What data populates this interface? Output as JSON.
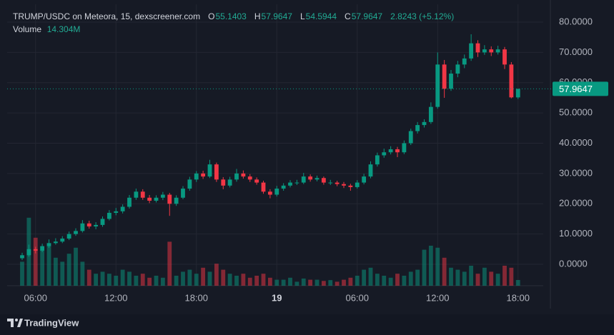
{
  "chart_data": {
    "type": "candlestick",
    "title": "TRUMP/USDC on Meteora, 15, dexscreener.com",
    "open_label": "O",
    "high_label": "H",
    "low_label": "L",
    "close_label": "C",
    "change": "2.8243 (+5.12%)",
    "volume_title": "Volume",
    "volume_label": "14.304M",
    "brand": "TradingView",
    "up_color": "#089981",
    "down_color": "#f23645",
    "ylim": [
      -7.08,
      85.9
    ],
    "yticks": [
      {
        "value": 0,
        "label": "0.0000"
      },
      {
        "value": 10,
        "label": "10.0000"
      },
      {
        "value": 20,
        "label": "20.0000"
      },
      {
        "value": 30,
        "label": "30.0000"
      },
      {
        "value": 40,
        "label": "40.0000"
      },
      {
        "value": 50,
        "label": "50.0000"
      },
      {
        "value": 60,
        "label": "60.0000"
      },
      {
        "value": 70,
        "label": "70.0000"
      },
      {
        "value": 80,
        "label": "80.0000"
      }
    ],
    "xlim": [
      -2.24,
      77.76
    ],
    "xticks": [
      {
        "value": 2,
        "label": "06:00"
      },
      {
        "value": 14,
        "label": "12:00"
      },
      {
        "value": 26,
        "label": "18:00"
      },
      {
        "value": 38,
        "label": "19"
      },
      {
        "value": 50,
        "label": "06:00"
      },
      {
        "value": 62,
        "label": "12:00"
      },
      {
        "value": 74,
        "label": "18:00"
      }
    ],
    "grid": true,
    "candles": [
      [
        2,
        3.8,
        1.4,
        3
      ],
      [
        3,
        6.5,
        2.5,
        5
      ],
      [
        5,
        5.8,
        3.6,
        4.5
      ],
      [
        4.5,
        6.8,
        4,
        6
      ],
      [
        6,
        8.2,
        5.4,
        7
      ],
      [
        7,
        8.6,
        6.5,
        7.5
      ],
      [
        7.5,
        9.3,
        7,
        8.5
      ],
      [
        8.5,
        10.8,
        8,
        10
      ],
      [
        10,
        11.9,
        9.4,
        11
      ],
      [
        11,
        14.6,
        10.5,
        13.5
      ],
      [
        13.5,
        14.4,
        11.8,
        12.5
      ],
      [
        12.5,
        13.9,
        11.6,
        13
      ],
      [
        13,
        15.8,
        12.4,
        15
      ],
      [
        15,
        17.9,
        14.5,
        17
      ],
      [
        17,
        18.6,
        16.2,
        17.5
      ],
      [
        17.5,
        19.8,
        16.8,
        19
      ],
      [
        19,
        22.9,
        18.4,
        22
      ],
      [
        22,
        25,
        21.3,
        24
      ],
      [
        24,
        24.8,
        21.3,
        22
      ],
      [
        22,
        22.9,
        20.2,
        21
      ],
      [
        21,
        22.8,
        20.4,
        22
      ],
      [
        22,
        23.9,
        21.2,
        23
      ],
      [
        23,
        23.6,
        16,
        20
      ],
      [
        20,
        22.8,
        19.3,
        22
      ],
      [
        22,
        25.8,
        21.5,
        25
      ],
      [
        25,
        28.9,
        24.3,
        28
      ],
      [
        28,
        30.8,
        27.2,
        30
      ],
      [
        30,
        30.9,
        28.2,
        29
      ],
      [
        29,
        34.5,
        28.5,
        33
      ],
      [
        33,
        33.6,
        27.2,
        28
      ],
      [
        28,
        28.8,
        24.8,
        26
      ],
      [
        26,
        28.9,
        25.4,
        28
      ],
      [
        28,
        31.5,
        27.3,
        30
      ],
      [
        30,
        31,
        28.3,
        29
      ],
      [
        29,
        29.8,
        27.2,
        28
      ],
      [
        28,
        28.7,
        26.3,
        27
      ],
      [
        27,
        27.6,
        23.3,
        24
      ],
      [
        24,
        24.8,
        21.8,
        23
      ],
      [
        23,
        25.9,
        22.4,
        25
      ],
      [
        25,
        26.8,
        24.3,
        26
      ],
      [
        26,
        27.8,
        25.4,
        27
      ],
      [
        27,
        27.9,
        26.2,
        27
      ],
      [
        27,
        30.2,
        26.5,
        29
      ],
      [
        29,
        29.7,
        27.3,
        28
      ],
      [
        28,
        29.3,
        27.4,
        28.5
      ],
      [
        28.5,
        29,
        26.3,
        27
      ],
      [
        27,
        27.9,
        26.2,
        27
      ],
      [
        27,
        27.6,
        25.8,
        26.5
      ],
      [
        26.5,
        27.2,
        25.2,
        26
      ],
      [
        26,
        26.6,
        24.3,
        25.5
      ],
      [
        25.5,
        27.8,
        25,
        27
      ],
      [
        27,
        29.9,
        26.4,
        29
      ],
      [
        29,
        34,
        28.4,
        33
      ],
      [
        33,
        36.9,
        32.3,
        36
      ],
      [
        36,
        38.2,
        35.2,
        37
      ],
      [
        37,
        39,
        36.3,
        38
      ],
      [
        38,
        38.8,
        35.4,
        37
      ],
      [
        37,
        40.9,
        36.4,
        40
      ],
      [
        40,
        44.8,
        39.4,
        44
      ],
      [
        44,
        47,
        43.2,
        46
      ],
      [
        46,
        47.9,
        45.2,
        47
      ],
      [
        47,
        53.5,
        46.4,
        52
      ],
      [
        52,
        70,
        51.4,
        66
      ],
      [
        66,
        67.5,
        55,
        58
      ],
      [
        58,
        64.2,
        57.3,
        63
      ],
      [
        63,
        67.2,
        61.8,
        66
      ],
      [
        66,
        69.3,
        64.8,
        68
      ],
      [
        68,
        76,
        67.2,
        73
      ],
      [
        73,
        74,
        68.5,
        70
      ],
      [
        70,
        72.4,
        69.2,
        71
      ],
      [
        71,
        72,
        68.8,
        70
      ],
      [
        70,
        72.2,
        69.3,
        71
      ],
      [
        71,
        71.8,
        64.5,
        66
      ],
      [
        66,
        66.8,
        54.8,
        55.1403
      ],
      [
        55.1403,
        57.9647,
        54.5944,
        57.9647
      ]
    ],
    "volumes": [
      60,
      170,
      120,
      90,
      100,
      70,
      60,
      80,
      95,
      60,
      40,
      30,
      35,
      30,
      25,
      40,
      35,
      25,
      30,
      20,
      25,
      20,
      110,
      25,
      35,
      40,
      30,
      45,
      35,
      55,
      40,
      30,
      25,
      30,
      20,
      25,
      30,
      20,
      15,
      15,
      20,
      10,
      18,
      15,
      15,
      12,
      14,
      10,
      15,
      20,
      25,
      40,
      45,
      30,
      25,
      20,
      30,
      25,
      35,
      40,
      90,
      100,
      95,
      70,
      45,
      40,
      35,
      50,
      30,
      45,
      35,
      30,
      50,
      45,
      14.304
    ],
    "volume_lim": [
      0,
      200
    ]
  }
}
